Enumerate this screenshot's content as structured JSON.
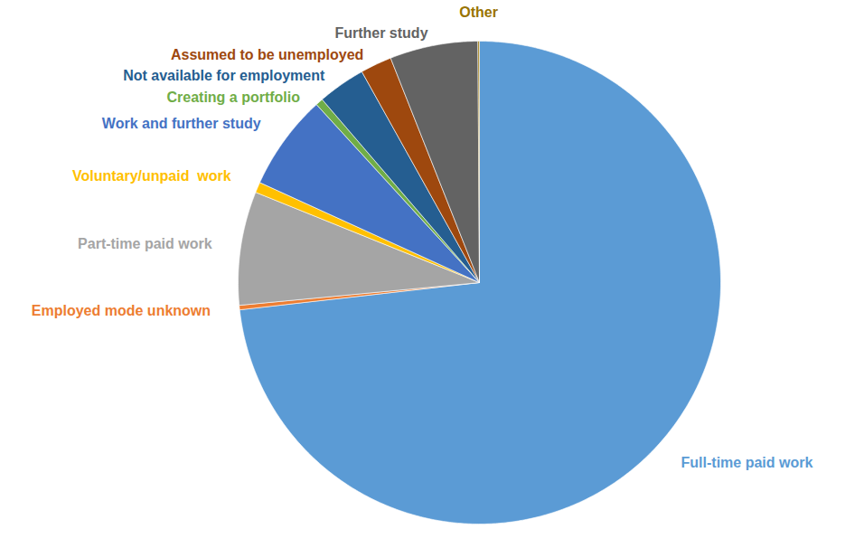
{
  "chart_data": {
    "type": "pie",
    "categories": [
      "Full-time paid work",
      "Employed mode unknown",
      "Part-time paid work",
      "Voluntary/unpaid  work",
      "Work and further study",
      "Creating a portfolio",
      "Not available for employment",
      "Assumed to be unemployed",
      "Further study",
      "Other"
    ],
    "values": [
      73.2,
      0.3,
      7.6,
      0.7,
      6.4,
      0.5,
      3.2,
      2.1,
      5.9,
      0.1
    ],
    "colors": [
      "#5B9BD5",
      "#ED7D31",
      "#A5A5A5",
      "#FFC000",
      "#4472C4",
      "#70AD47",
      "#255E91",
      "#9E480E",
      "#636363",
      "#997300"
    ],
    "tick_labels": false
  }
}
